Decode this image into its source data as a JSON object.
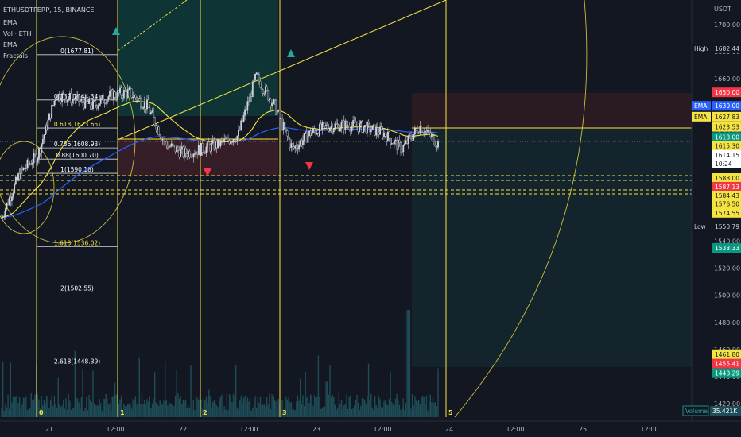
{
  "header": {
    "symbol_line": "ETHUSDTPERP, 15, BINANCE",
    "indicators": [
      "EMA",
      "Vol · ETH",
      "EMA",
      "Fractals"
    ]
  },
  "price_axis": {
    "unit_label": "USDT",
    "ticks": [
      1700,
      1680,
      1660,
      1640,
      1620,
      1600,
      1580,
      1560,
      1540,
      1520,
      1500,
      1480,
      1460,
      1440,
      1420
    ],
    "tick_labels": [
      "1700.00",
      "1680.00",
      "1660.00",
      "1640.00",
      "1620.00",
      "1600.00",
      "1580.00",
      "1560.00",
      "1540.00",
      "1520.00",
      "1500.00",
      "1480.00",
      "1460.00",
      "1440.00",
      "1420.00"
    ],
    "badges": [
      {
        "text": "1682.44",
        "price": 1682.44,
        "bg": "#131722",
        "fg": "#d1d4dc",
        "tag": "High"
      },
      {
        "text": "1650.00",
        "price": 1650.0,
        "bg": "#f23645",
        "fg": "#ffffff",
        "tag": ""
      },
      {
        "text": "1630.00",
        "price": 1640.0,
        "bg": "#2962ff",
        "fg": "#ffffff",
        "tag": "EMA"
      },
      {
        "text": "1627.83",
        "price": 1632.0,
        "bg": "#f5e342",
        "fg": "#131722",
        "tag": "EMA"
      },
      {
        "text": "1623.53",
        "price": 1624.5,
        "bg": "#f5e342",
        "fg": "#131722",
        "tag": ""
      },
      {
        "text": "1618.00",
        "price": 1617.0,
        "bg": "#089981",
        "fg": "#ffffff",
        "tag": ""
      },
      {
        "text": "1615.30",
        "price": 1610.5,
        "bg": "#f5e342",
        "fg": "#131722",
        "tag": ""
      },
      {
        "text": "1614.15",
        "price": 1603.8,
        "bg": "#ffffff",
        "fg": "#131722",
        "tag": ""
      },
      {
        "text": "10:24",
        "price": 1597.3,
        "bg": "#ffffff",
        "fg": "#131722",
        "tag": ""
      },
      {
        "text": "1588.00",
        "price": 1586.7,
        "bg": "#f5e342",
        "fg": "#131722",
        "tag": ""
      },
      {
        "text": "1587.13",
        "price": 1580.3,
        "bg": "#f23645",
        "fg": "#ffffff",
        "tag": ""
      },
      {
        "text": "1584.43",
        "price": 1573.8,
        "bg": "#f5e342",
        "fg": "#131722",
        "tag": ""
      },
      {
        "text": "1576.50",
        "price": 1567.5,
        "bg": "#f5e342",
        "fg": "#131722",
        "tag": ""
      },
      {
        "text": "1574.55",
        "price": 1561.0,
        "bg": "#f5e342",
        "fg": "#131722",
        "tag": ""
      },
      {
        "text": "1550.79",
        "price": 1550.79,
        "bg": "#131722",
        "fg": "#d1d4dc",
        "tag": "Low"
      },
      {
        "text": "1533.33",
        "price": 1535.0,
        "bg": "#089981",
        "fg": "#ffffff",
        "tag": ""
      },
      {
        "text": "1461.80",
        "price": 1456.5,
        "bg": "#f5e342",
        "fg": "#131722",
        "tag": ""
      },
      {
        "text": "1455.41",
        "price": 1449.5,
        "bg": "#f23645",
        "fg": "#ffffff",
        "tag": ""
      },
      {
        "text": "1448.29",
        "price": 1442.5,
        "bg": "#089981",
        "fg": "#ffffff",
        "tag": ""
      }
    ],
    "volume_tag": "Volume",
    "volume_value": "35.421K"
  },
  "time_axis": {
    "labels": [
      "21",
      "12:00",
      "22",
      "12:00",
      "23",
      "12:00",
      "24",
      "12:00",
      "25",
      "12:00"
    ]
  },
  "fib_levels": [
    {
      "label": "0(1677.81)",
      "price": 1677.81
    },
    {
      "label": "0.382(1644.34)",
      "price": 1644.34
    },
    {
      "label": "0.618(1623.65)",
      "price": 1623.65
    },
    {
      "label": "0.786(1608.93)",
      "price": 1608.93
    },
    {
      "label": "0.88(1600.70)",
      "price": 1600.7
    },
    {
      "label": "1(1590.18)",
      "price": 1590.18
    },
    {
      "label": "1.618(1536.02)",
      "price": 1536.02
    },
    {
      "label": "2(1502.55)",
      "price": 1502.55
    },
    {
      "label": "2.618(1448.39)",
      "price": 1448.39
    }
  ],
  "wave_labels": [
    "0",
    "1",
    "2",
    "3",
    "5"
  ],
  "colors": {
    "background": "#131722",
    "candle": "#d1d4dc",
    "ema_fast": "#2962ff",
    "ema_slow": "#f5e342",
    "fib": "#f5e342",
    "up_marker": "#26a69a",
    "down_marker": "#f23645",
    "profit_zone": "#0f3a3a",
    "loss_zone": "#3a1f28",
    "volume": "#1e4d58"
  },
  "chart_data": {
    "type": "line",
    "title": "ETHUSDTPERP, 15, BINANCE",
    "xlabel": "",
    "ylabel": "USDT",
    "ylim": [
      1410,
      1710
    ],
    "grid": false,
    "series": [
      {
        "name": "ETHUSDTPERP",
        "x": [
          "20 18:00",
          "20 21:00",
          "21 00:00",
          "21 03:00",
          "21 06:00",
          "21 09:00",
          "21 12:00",
          "21 15:00",
          "21 18:00",
          "21 21:00",
          "22 00:00",
          "22 03:00",
          "22 06:00",
          "22 09:00",
          "22 12:00",
          "22 15:00",
          "22 18:00",
          "22 21:00",
          "23 00:00",
          "23 03:00",
          "23 06:00",
          "23 09:00",
          "23 12:00",
          "23 15:00",
          "23 18:00"
        ],
        "values": [
          1558,
          1590,
          1604,
          1648,
          1645,
          1640,
          1648,
          1650,
          1640,
          1612,
          1605,
          1608,
          1612,
          1618,
          1662,
          1640,
          1608,
          1620,
          1625,
          1626,
          1624,
          1620,
          1608,
          1625,
          1612
        ]
      }
    ],
    "annotations": [
      "0",
      "1",
      "2",
      "3",
      "5"
    ]
  }
}
